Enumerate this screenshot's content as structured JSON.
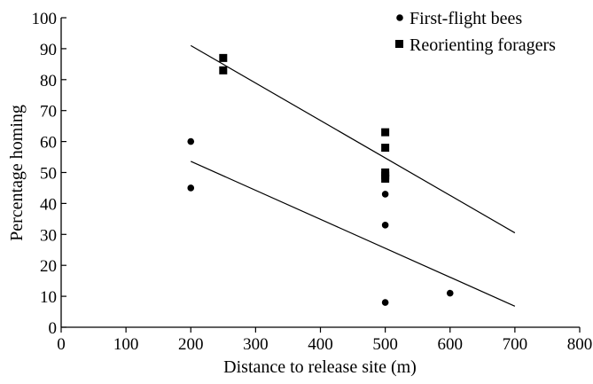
{
  "chart_data": {
    "type": "scatter",
    "title": "",
    "xlabel": "Distance to release site (m)",
    "ylabel": "Percentage homing",
    "xlim": [
      0,
      800
    ],
    "ylim": [
      0,
      100
    ],
    "xticks": [
      "0",
      "100",
      "200",
      "300",
      "400",
      "500",
      "600",
      "700",
      "800"
    ],
    "yticks": [
      "0",
      "10",
      "20",
      "30",
      "40",
      "50",
      "60",
      "70",
      "80",
      "90",
      "100"
    ],
    "grid": false,
    "legend_position": "top-right",
    "series": [
      {
        "name": "First-flight bees",
        "marker": "circle",
        "color": "#000000",
        "points": [
          {
            "x": 200,
            "y": 60
          },
          {
            "x": 200,
            "y": 45
          },
          {
            "x": 500,
            "y": 43
          },
          {
            "x": 500,
            "y": 33
          },
          {
            "x": 500,
            "y": 8
          },
          {
            "x": 600,
            "y": 11
          }
        ],
        "trendline": {
          "x": [
            200,
            700
          ],
          "y": [
            53.6,
            6.8
          ]
        }
      },
      {
        "name": "Reorienting foragers",
        "marker": "square",
        "color": "#000000",
        "points": [
          {
            "x": 250,
            "y": 87
          },
          {
            "x": 250,
            "y": 83
          },
          {
            "x": 500,
            "y": 63
          },
          {
            "x": 500,
            "y": 58
          },
          {
            "x": 500,
            "y": 50
          },
          {
            "x": 500,
            "y": 49
          },
          {
            "x": 500,
            "y": 48
          }
        ],
        "trendline": {
          "x": [
            200,
            700
          ],
          "y": [
            91,
            30.5
          ]
        }
      }
    ]
  }
}
